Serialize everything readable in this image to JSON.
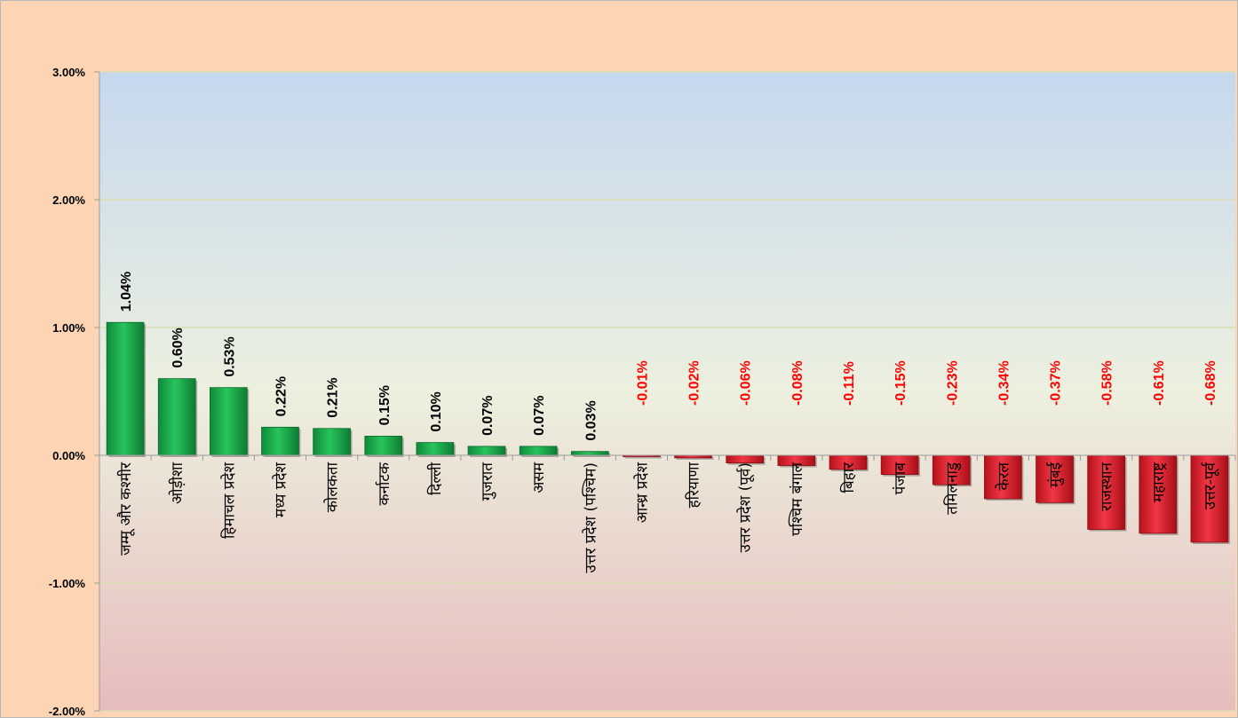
{
  "chart_data": {
    "type": "bar",
    "title": "",
    "xlabel": "",
    "ylabel": "",
    "ylim": [
      -2,
      3
    ],
    "y_ticks": [
      3,
      2,
      1,
      0,
      -1,
      -2
    ],
    "y_tick_labels": [
      "3.00%",
      "2.00%",
      "1.00%",
      "0.00%",
      "-1.00%",
      "-2.00%"
    ],
    "grid": true,
    "legend": "none",
    "colors": {
      "positive": "#1db34f",
      "negative": "#e41f2b",
      "positive_label": "#000000",
      "negative_label": "#ff0000",
      "frame_background": "#fdd5b4",
      "plot_top": "#c5d8ef",
      "plot_mid": "#edf0df",
      "plot_bottom": "#e6bcbc"
    },
    "categories": [
      "जम्मू और कश्मीर",
      "ओड़ीशा",
      "हिमाचल प्रदेश",
      "मध्य प्रदेश",
      "कोलकता",
      "कर्नाटक",
      "दिल्ली",
      "गुजरात",
      "असम",
      "उत्तर प्रदेश (पश्चिम)",
      "आन्ध्र प्रदेश",
      "हरियाणा",
      "उत्तर प्रदेश (पूर्व)",
      "पश्चिम बंगाल",
      "बिहार",
      "पंजाब",
      "तमिलनाडु",
      "केरल",
      "मुंबई",
      "राजस्थान",
      "महाराष्ट्र",
      "उत्तर-पूर्व"
    ],
    "values": [
      1.04,
      0.6,
      0.53,
      0.22,
      0.21,
      0.15,
      0.1,
      0.07,
      0.07,
      0.03,
      -0.01,
      -0.02,
      -0.06,
      -0.08,
      -0.11,
      -0.15,
      -0.23,
      -0.34,
      -0.37,
      -0.58,
      -0.61,
      -0.68
    ],
    "data_labels": [
      "1.04%",
      "0.60%",
      "0.53%",
      "0.22%",
      "0.21%",
      "0.15%",
      "0.10%",
      "0.07%",
      "0.07%",
      "0.03%",
      "-0.01%",
      "-0.02%",
      "-0.06%",
      "-0.08%",
      "-0.11%",
      "-0.15%",
      "-0.23%",
      "-0.34%",
      "-0.37%",
      "-0.58%",
      "-0.61%",
      "-0.68%"
    ]
  }
}
